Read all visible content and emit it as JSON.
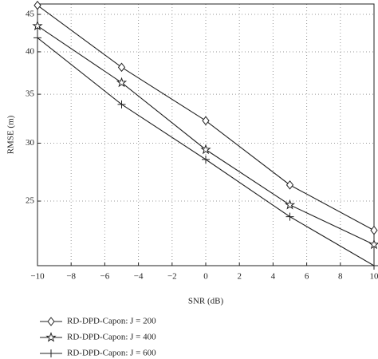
{
  "chart_data": {
    "type": "line",
    "x_label": "SNR (dB)",
    "y_label": "RMSE (m)",
    "x": [
      -10,
      -5,
      0,
      5,
      10
    ],
    "series": [
      {
        "name": "RD-DPD-Capon: J = 200",
        "color": "#222222",
        "marker": "diamond",
        "values": [
          46.3,
          38.1,
          32.2,
          26.3,
          22.8
        ]
      },
      {
        "name": "RD-DPD-Capon: J = 400",
        "color": "#222222",
        "marker": "star",
        "values": [
          43.4,
          36.3,
          29.4,
          24.7,
          21.8
        ]
      },
      {
        "name": "RD-DPD-Capon: J = 600",
        "color": "#222222",
        "marker": "plus",
        "values": [
          41.8,
          33.9,
          28.5,
          23.8,
          20.4
        ]
      }
    ],
    "xlim": [
      -10,
      10
    ],
    "xticks": [
      {
        "value": -10,
        "label": "−10"
      },
      {
        "value": -8,
        "label": "−8"
      },
      {
        "value": -6,
        "label": "−6"
      },
      {
        "value": -4,
        "label": "−4"
      },
      {
        "value": -2,
        "label": "−2"
      },
      0,
      2,
      4,
      6,
      8,
      10
    ],
    "ylim": [
      20.4,
      46.5
    ],
    "yticks": [
      25,
      30,
      35,
      40,
      45
    ],
    "y_scale": "log",
    "grid": true,
    "legend": "bottom"
  }
}
